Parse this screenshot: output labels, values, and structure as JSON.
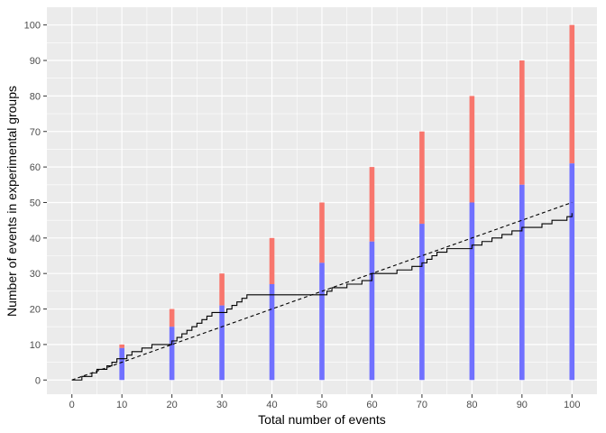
{
  "chart_data": {
    "type": "bar",
    "title": "",
    "xlabel": "Total number of events",
    "ylabel": "Number of events in experimental groups",
    "xlim": [
      -5,
      105
    ],
    "ylim": [
      -4,
      105
    ],
    "x_ticks": [
      0,
      10,
      20,
      30,
      40,
      50,
      60,
      70,
      80,
      90,
      100
    ],
    "y_ticks": [
      0,
      10,
      20,
      30,
      40,
      50,
      60,
      70,
      80,
      90,
      100
    ],
    "grid": true,
    "bars": {
      "x": [
        10,
        20,
        30,
        40,
        50,
        60,
        70,
        80,
        90,
        100
      ],
      "total": [
        10,
        20,
        30,
        40,
        50,
        60,
        70,
        80,
        90,
        100
      ],
      "lower": [
        9,
        15,
        21,
        27,
        33,
        39,
        44,
        50,
        55,
        61
      ],
      "colors": {
        "total": "#f8766d",
        "lower": "#7070ff"
      }
    },
    "step_line": {
      "x": [
        0,
        2,
        3,
        4,
        5,
        6,
        7,
        8,
        9,
        10,
        11,
        12,
        13,
        14,
        15,
        16,
        17,
        20,
        21,
        22,
        23,
        24,
        25,
        26,
        27,
        28,
        29,
        30,
        31,
        32,
        33,
        34,
        35,
        38,
        39,
        51,
        52,
        55,
        58,
        60,
        61,
        64,
        65,
        68,
        70,
        71,
        72,
        73,
        75,
        80,
        82,
        84,
        86,
        87,
        88,
        90,
        94,
        96,
        99,
        100
      ],
      "y": [
        0,
        1,
        1,
        2,
        3,
        3,
        4,
        5,
        6,
        6,
        7,
        8,
        8,
        9,
        9,
        10,
        10,
        11,
        12,
        13,
        14,
        15,
        16,
        17,
        18,
        19,
        19,
        19,
        20,
        21,
        22,
        23,
        24,
        24,
        24,
        25,
        26,
        27,
        28,
        30,
        30,
        30,
        31,
        32,
        33,
        34,
        35,
        36,
        37,
        38,
        39,
        40,
        41,
        41,
        42,
        43,
        44,
        45,
        46,
        47
      ],
      "color": "#000000"
    },
    "reference_line": {
      "x": [
        0,
        100
      ],
      "y": [
        0,
        50
      ],
      "style": "dashed",
      "color": "#000000"
    },
    "panel_background": "#ebebeb",
    "grid_color": "#ffffff"
  }
}
